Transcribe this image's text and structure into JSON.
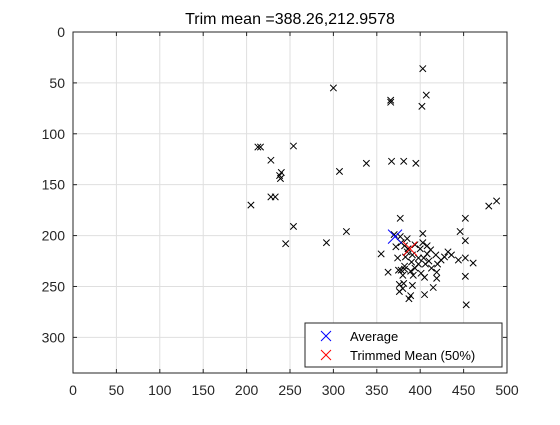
{
  "chart_data": {
    "type": "scatter",
    "title": "Trim mean =388.26,212.9578",
    "xlabel": "",
    "ylabel": "",
    "xlim": [
      0,
      500
    ],
    "ylim": [
      0,
      335
    ],
    "y_axis_reversed": true,
    "grid": true,
    "x_ticks": [
      0,
      50,
      100,
      150,
      200,
      250,
      300,
      350,
      400,
      450,
      500
    ],
    "y_ticks": [
      0,
      50,
      100,
      150,
      200,
      250,
      300
    ],
    "legend_position": "bottom-right",
    "series": [
      {
        "name": "",
        "marker": "x",
        "color": "#000000",
        "points": [
          [
            403,
            36
          ],
          [
            300,
            55
          ],
          [
            366,
            67
          ],
          [
            366,
            69
          ],
          [
            407,
            62
          ],
          [
            402,
            73
          ],
          [
            213,
            113
          ],
          [
            216,
            113
          ],
          [
            254,
            112
          ],
          [
            228,
            126
          ],
          [
            367,
            127
          ],
          [
            381,
            127
          ],
          [
            395,
            129
          ],
          [
            338,
            129
          ],
          [
            307,
            137
          ],
          [
            238,
            141
          ],
          [
            240,
            138
          ],
          [
            239,
            144
          ],
          [
            228,
            162
          ],
          [
            233,
            162
          ],
          [
            205,
            170
          ],
          [
            479,
            171
          ],
          [
            488,
            166
          ],
          [
            452,
            183
          ],
          [
            377,
            183
          ],
          [
            254,
            191
          ],
          [
            315,
            196
          ],
          [
            370,
            199
          ],
          [
            403,
            198
          ],
          [
            446,
            196
          ],
          [
            292,
            207
          ],
          [
            245,
            208
          ],
          [
            452,
            205
          ],
          [
            378,
            207
          ],
          [
            382,
            210
          ],
          [
            385,
            216
          ],
          [
            386,
            213
          ],
          [
            372,
            211
          ],
          [
            394,
            209
          ],
          [
            400,
            213
          ],
          [
            408,
            210
          ],
          [
            403,
            207
          ],
          [
            412,
            214
          ],
          [
            391,
            219
          ],
          [
            398,
            222
          ],
          [
            404,
            222
          ],
          [
            408,
            218
          ],
          [
            418,
            219
          ],
          [
            432,
            216
          ],
          [
            428,
            221
          ],
          [
            436,
            219
          ],
          [
            355,
            218
          ],
          [
            383,
            221
          ],
          [
            374,
            222
          ],
          [
            452,
            222
          ],
          [
            461,
            227
          ],
          [
            444,
            224
          ],
          [
            424,
            224
          ],
          [
            406,
            228
          ],
          [
            398,
            228
          ],
          [
            413,
            232
          ],
          [
            419,
            236
          ],
          [
            405,
            241
          ],
          [
            378,
            234
          ],
          [
            375,
            234
          ],
          [
            382,
            233
          ],
          [
            389,
            235
          ],
          [
            363,
            236
          ],
          [
            380,
            239
          ],
          [
            392,
            239
          ],
          [
            452,
            240
          ],
          [
            419,
            242
          ],
          [
            381,
            247
          ],
          [
            376,
            248
          ],
          [
            391,
            249
          ],
          [
            380,
            252
          ],
          [
            405,
            258
          ],
          [
            389,
            259
          ],
          [
            387,
            262
          ],
          [
            415,
            251
          ],
          [
            376,
            255
          ],
          [
            382,
            230
          ],
          [
            390,
            226
          ],
          [
            394,
            232
          ],
          [
            401,
            237
          ],
          [
            410,
            225
          ],
          [
            420,
            228
          ],
          [
            385,
            203
          ],
          [
            377,
            201
          ],
          [
            453,
            268
          ]
        ]
      },
      {
        "name": "Average",
        "marker": "x",
        "color": "#0000ff",
        "points": [
          [
            371,
            201
          ]
        ]
      },
      {
        "name": "Trimmed Mean (50%)",
        "marker": "x",
        "color": "#ff0000",
        "points": [
          [
            388.26,
            212.9578
          ]
        ]
      }
    ]
  }
}
